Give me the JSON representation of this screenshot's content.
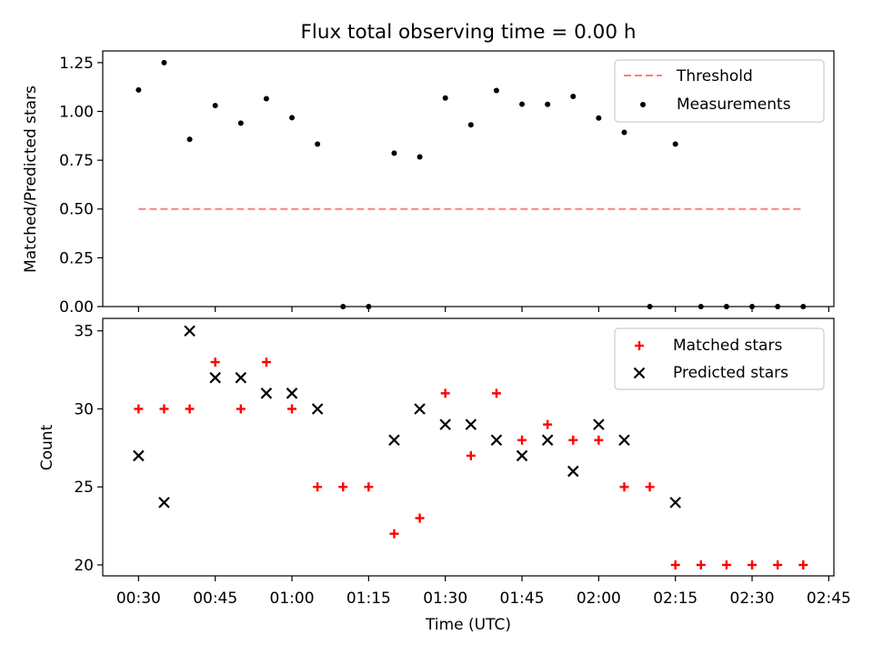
{
  "figure_title": "Flux total observing time = 0.00 h",
  "colors": {
    "threshold": "#ff7f7f",
    "measurements": "#000000",
    "matched": "#ff0000",
    "predicted": "#000000"
  },
  "chart_data": [
    {
      "type": "scatter",
      "title": "Flux total observing time = 0.00 h",
      "xlabel": "",
      "ylabel": "Matched/Predicted stars",
      "ylim": [
        0,
        1.31
      ],
      "xlim": [
        "00:23",
        "02:46"
      ],
      "yticks": [
        "0.00",
        "0.25",
        "0.50",
        "0.75",
        "1.00",
        "1.25"
      ],
      "grid": false,
      "legend_position": "top-right",
      "series": [
        {
          "name": "Threshold",
          "type": "line",
          "style": "dashed",
          "x": [
            "00:30",
            "02:40"
          ],
          "y": [
            0.5,
            0.5
          ]
        },
        {
          "name": "Measurements",
          "type": "scatter",
          "marker": "dot",
          "x": [
            "00:30",
            "00:35",
            "00:40",
            "00:45",
            "00:50",
            "00:55",
            "01:00",
            "01:05",
            "01:10",
            "01:15",
            "01:20",
            "01:25",
            "01:30",
            "01:35",
            "01:40",
            "01:45",
            "01:50",
            "01:55",
            "02:00",
            "02:05",
            "02:10",
            "02:15",
            "02:20",
            "02:25",
            "02:30",
            "02:35",
            "02:40"
          ],
          "y": [
            1.11,
            1.25,
            0.857,
            1.03,
            0.94,
            1.065,
            0.968,
            0.833,
            0,
            0,
            0.786,
            0.767,
            1.069,
            0.931,
            1.107,
            1.037,
            1.036,
            1.077,
            0.966,
            0.893,
            0,
            0.833,
            0,
            0,
            0,
            0,
            0
          ]
        }
      ]
    },
    {
      "type": "scatter",
      "xlabel": "Time (UTC)",
      "ylabel": "Count",
      "ylim": [
        19.3,
        35.8
      ],
      "xlim": [
        "00:23",
        "02:46"
      ],
      "yticks": [
        "20",
        "25",
        "30",
        "35"
      ],
      "xticks": [
        "00:30",
        "00:45",
        "01:00",
        "01:15",
        "01:30",
        "01:45",
        "02:00",
        "02:15",
        "02:30",
        "02:45"
      ],
      "grid": false,
      "legend_position": "top-right",
      "series": [
        {
          "name": "Matched stars",
          "marker": "plus",
          "x": [
            "00:30",
            "00:35",
            "00:40",
            "00:45",
            "00:50",
            "00:55",
            "01:00",
            "01:05",
            "01:10",
            "01:15",
            "01:20",
            "01:25",
            "01:30",
            "01:35",
            "01:40",
            "01:45",
            "01:50",
            "01:55",
            "02:00",
            "02:05",
            "02:10",
            "02:15",
            "02:20",
            "02:25",
            "02:30",
            "02:35",
            "02:40"
          ],
          "y": [
            30,
            30,
            30,
            33,
            30,
            33,
            30,
            25,
            25,
            25,
            22,
            23,
            31,
            27,
            31,
            28,
            29,
            28,
            28,
            25,
            25,
            20,
            20,
            20,
            20,
            20,
            20
          ]
        },
        {
          "name": "Predicted stars",
          "marker": "x",
          "x": [
            "00:30",
            "00:35",
            "00:40",
            "00:45",
            "00:50",
            "00:55",
            "01:00",
            "01:05",
            "01:20",
            "01:25",
            "01:30",
            "01:35",
            "01:40",
            "01:45",
            "01:50",
            "01:55",
            "02:00",
            "02:05",
            "02:15"
          ],
          "y": [
            27,
            24,
            35,
            32,
            32,
            31,
            31,
            30,
            28,
            30,
            29,
            29,
            28,
            27,
            28,
            26,
            29,
            28,
            24
          ]
        }
      ]
    }
  ]
}
